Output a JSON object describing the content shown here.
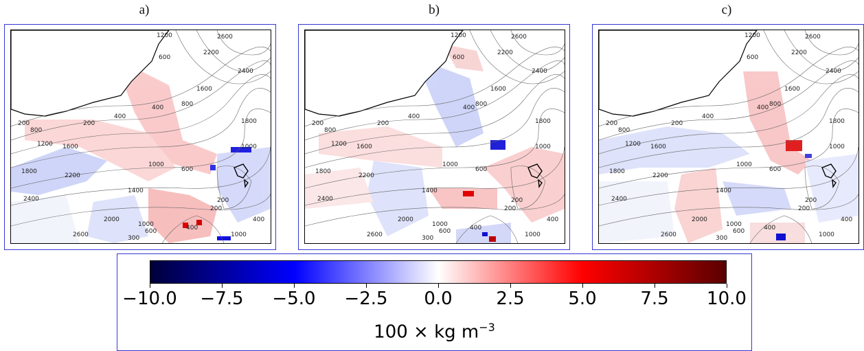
{
  "panels": [
    {
      "label": "a)"
    },
    {
      "label": "b)"
    },
    {
      "label": "c)"
    }
  ],
  "contour_labels": [
    "1200",
    "2600",
    "2200",
    "600",
    "2400",
    "1600",
    "1800",
    "800",
    "400",
    "200",
    "1000",
    "1400",
    "2000",
    "300"
  ],
  "colorbar": {
    "min": -10.0,
    "max": 10.0,
    "colormap": "seismic",
    "ticks": [
      "−10.0",
      "−7.5",
      "−5.0",
      "−2.5",
      "0.0",
      "2.5",
      "5.0",
      "7.5",
      "10.0"
    ],
    "label_text": "100 × kg m",
    "label_exponent": "−3"
  },
  "colors": {
    "frame": "#3535d6",
    "negative": "#0000ff",
    "positive": "#ff0000"
  }
}
